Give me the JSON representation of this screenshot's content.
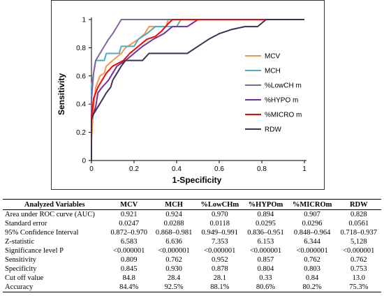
{
  "chart_data": {
    "type": "line",
    "xlabel": "1-Specificity",
    "ylabel": "Sensitivity",
    "xlim": [
      0,
      1
    ],
    "ylim": [
      0,
      1
    ],
    "xticks": [
      "0",
      "0.2",
      "0.4",
      "0.6",
      "0.8",
      "1"
    ],
    "yticks": [
      "0",
      "0.2",
      "0.4",
      "0.6",
      "0.8",
      "1"
    ],
    "grid": false,
    "legend_position": "right",
    "series": [
      {
        "name": "MCV",
        "color": "#f79646",
        "points": [
          [
            0,
            0
          ],
          [
            0,
            0.14
          ],
          [
            0.01,
            0.38
          ],
          [
            0.02,
            0.52
          ],
          [
            0.04,
            0.6
          ],
          [
            0.06,
            0.62
          ],
          [
            0.07,
            0.67
          ],
          [
            0.1,
            0.71
          ],
          [
            0.14,
            0.76
          ],
          [
            0.16,
            0.8
          ],
          [
            0.22,
            0.86
          ],
          [
            0.25,
            0.9
          ],
          [
            0.27,
            0.95
          ],
          [
            0.35,
            0.95
          ],
          [
            0.36,
            1
          ],
          [
            1,
            1
          ]
        ]
      },
      {
        "name": "MCH",
        "color": "#4bacc6",
        "points": [
          [
            0,
            0
          ],
          [
            0,
            0.52
          ],
          [
            0.01,
            0.62
          ],
          [
            0.02,
            0.71
          ],
          [
            0.06,
            0.71
          ],
          [
            0.07,
            0.76
          ],
          [
            0.13,
            0.76
          ],
          [
            0.14,
            0.81
          ],
          [
            0.2,
            0.81
          ],
          [
            0.22,
            0.86
          ],
          [
            0.26,
            0.9
          ],
          [
            0.3,
            0.95
          ],
          [
            0.4,
            0.95
          ],
          [
            0.42,
            1
          ],
          [
            1,
            1
          ]
        ]
      },
      {
        "name": "%LowCH m",
        "color": "#8064a2",
        "points": [
          [
            0,
            0
          ],
          [
            0,
            0.43
          ],
          [
            0.01,
            0.62
          ],
          [
            0.02,
            0.71
          ],
          [
            0.04,
            0.76
          ],
          [
            0.06,
            0.81
          ],
          [
            0.08,
            0.86
          ],
          [
            0.1,
            0.9
          ],
          [
            0.12,
            0.95
          ],
          [
            0.14,
            1
          ],
          [
            1,
            1
          ]
        ]
      },
      {
        "name": "%HYPO m",
        "color": "#7030a0",
        "points": [
          [
            0,
            0
          ],
          [
            0,
            0.29
          ],
          [
            0.02,
            0.38
          ],
          [
            0.03,
            0.48
          ],
          [
            0.05,
            0.52
          ],
          [
            0.08,
            0.57
          ],
          [
            0.1,
            0.62
          ],
          [
            0.12,
            0.67
          ],
          [
            0.16,
            0.71
          ],
          [
            0.2,
            0.76
          ],
          [
            0.24,
            0.81
          ],
          [
            0.29,
            0.86
          ],
          [
            0.34,
            0.9
          ],
          [
            0.38,
            0.95
          ],
          [
            0.45,
            0.95
          ],
          [
            0.5,
            1
          ],
          [
            1,
            1
          ]
        ]
      },
      {
        "name": "%MICRO m",
        "color": "#ff0000",
        "points": [
          [
            0,
            0
          ],
          [
            0,
            0.3
          ],
          [
            0.01,
            0.44
          ],
          [
            0.03,
            0.52
          ],
          [
            0.05,
            0.57
          ],
          [
            0.07,
            0.62
          ],
          [
            0.1,
            0.67
          ],
          [
            0.15,
            0.71
          ],
          [
            0.18,
            0.76
          ],
          [
            0.22,
            0.81
          ],
          [
            0.26,
            0.86
          ],
          [
            0.3,
            0.88
          ],
          [
            0.33,
            0.92
          ],
          [
            0.36,
            0.97
          ],
          [
            0.38,
            1
          ],
          [
            1,
            1
          ]
        ]
      },
      {
        "name": "RDW",
        "color": "#403152",
        "points": [
          [
            0,
            0
          ],
          [
            0,
            0.29
          ],
          [
            0.01,
            0.33
          ],
          [
            0.03,
            0.38
          ],
          [
            0.05,
            0.43
          ],
          [
            0.07,
            0.48
          ],
          [
            0.09,
            0.52
          ],
          [
            0.1,
            0.57
          ],
          [
            0.12,
            0.62
          ],
          [
            0.14,
            0.67
          ],
          [
            0.16,
            0.71
          ],
          [
            0.24,
            0.71
          ],
          [
            0.27,
            0.76
          ],
          [
            0.45,
            0.76
          ],
          [
            0.5,
            0.81
          ],
          [
            0.55,
            0.86
          ],
          [
            0.6,
            0.9
          ],
          [
            0.66,
            0.93
          ],
          [
            0.72,
            0.95
          ],
          [
            0.78,
            0.95
          ],
          [
            0.82,
            1
          ],
          [
            1,
            1
          ]
        ]
      }
    ]
  },
  "table": {
    "headers": [
      "Analyzed Variables",
      "MCV",
      "MCH",
      "%LowCHm",
      "%HYPOm",
      "%MICROm",
      "RDW"
    ],
    "rows": [
      [
        "Area under ROC curve (AUC)",
        "0.921",
        "0.924",
        "0.970",
        "0.894",
        "0.907",
        "0.828"
      ],
      [
        "Standard error",
        "0.0247",
        "0.0288",
        "0.0118",
        "0.0295",
        "0.0296",
        "0.0561"
      ],
      [
        "95% Confidence Interval",
        "0.872–0.970",
        "0.868–0.981",
        "0.949–0.991",
        "0.836–0.951",
        "0.848–0.964",
        "0.718–0.937"
      ],
      [
        "Z-statistic",
        "6.583",
        "6.636",
        "7.353",
        "6.153",
        "6.344",
        "5,128"
      ],
      [
        "Significance level P",
        "<0.000001",
        "<0.000001",
        "<0.000001",
        "<0.000001",
        "<0.000001",
        "<0.000001"
      ],
      [
        "Sensitivity",
        "0.809",
        "0.762",
        "0.952",
        "0.857",
        "0.762",
        "0.762"
      ],
      [
        "Specificity",
        "0.845",
        "0.930",
        "0.878",
        "0.804",
        "0.803",
        "0.753"
      ],
      [
        "Cut off value",
        "84.8",
        "28.4",
        "28.1",
        "0.33",
        "0.84",
        "13.0"
      ],
      [
        "Accuracy",
        "84.4%",
        "92.5%",
        "88.1%",
        "80.6%",
        "80.2%",
        "75.3%"
      ]
    ]
  }
}
